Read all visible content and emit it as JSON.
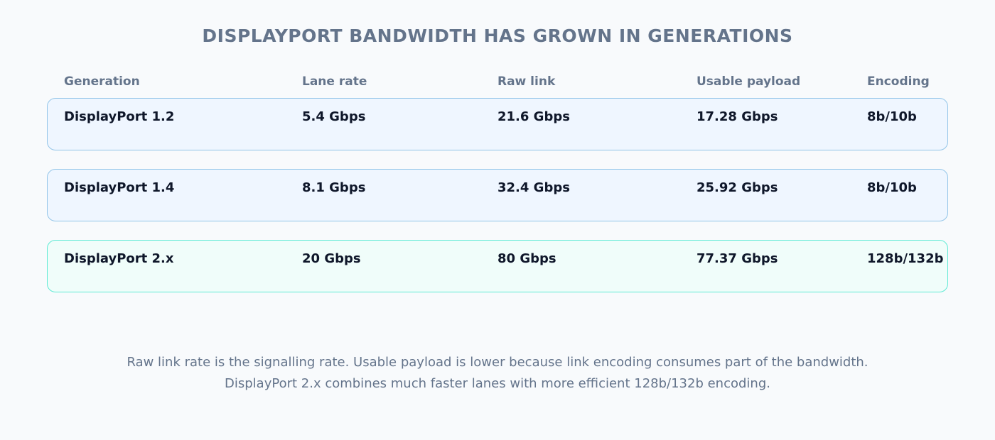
{
  "header": {
    "title": "DISPLAYPORT BANDWIDTH HAS GROWN IN GENERATIONS"
  },
  "table": {
    "columns": [
      "Generation",
      "Lane rate",
      "Raw link",
      "Usable payload",
      "Encoding"
    ],
    "rows": [
      [
        "DisplayPort 1.2",
        "5.4 Gbps",
        "21.6 Gbps",
        "17.28 Gbps",
        "8b/10b"
      ],
      [
        "DisplayPort 1.4",
        "8.1 Gbps",
        "32.4 Gbps",
        "25.92 Gbps",
        "8b/10b"
      ],
      [
        "DisplayPort 2.x",
        "20 Gbps",
        "80 Gbps",
        "77.37 Gbps",
        "128b/132b"
      ]
    ]
  },
  "footnote": [
    "Raw link rate is the signalling rate. Usable payload is lower because link encoding consumes part of the bandwidth.",
    "DisplayPort 2.x combines much faster lanes with more efficient 128b/132b encoding."
  ]
}
